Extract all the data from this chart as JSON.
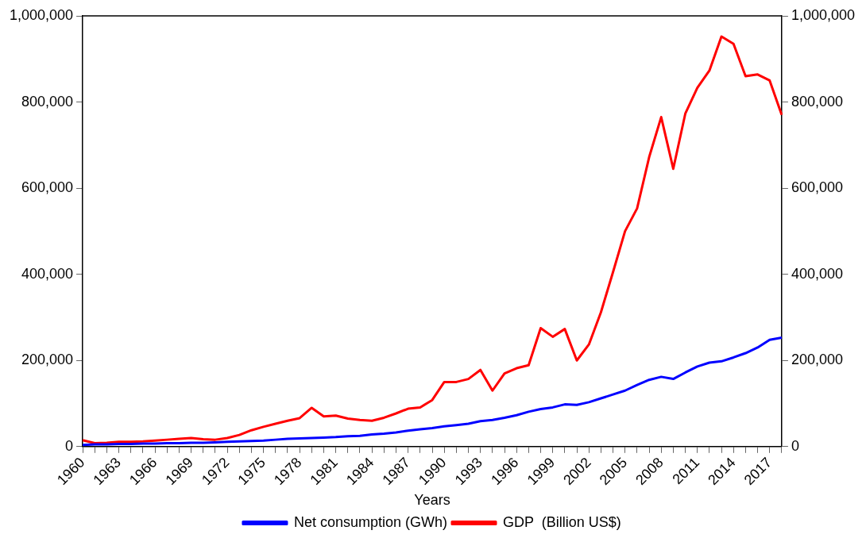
{
  "chart_data": {
    "type": "line",
    "xlabel": "Years",
    "categories": [
      "1960",
      null,
      null,
      "1963",
      null,
      null,
      "1966",
      null,
      null,
      "1969",
      null,
      null,
      "1972",
      null,
      null,
      "1975",
      null,
      null,
      "1978",
      null,
      null,
      "1981",
      null,
      null,
      "1984",
      null,
      null,
      "1987",
      null,
      null,
      "1990",
      null,
      null,
      "1993",
      null,
      null,
      "1996",
      null,
      null,
      "1999",
      null,
      null,
      "2002",
      null,
      null,
      "2005",
      null,
      null,
      "2008",
      null,
      null,
      "2011",
      null,
      null,
      "2014",
      null,
      null,
      "2017",
      null
    ],
    "series": [
      {
        "name": "Net consumption (GWh)",
        "color": "#0000ff",
        "values": [
          4000,
          5000,
          5000,
          6000,
          6000,
          7000,
          7000,
          8000,
          8000,
          9000,
          9000,
          10000,
          11000,
          12000,
          13000,
          14000,
          16000,
          18000,
          19000,
          20000,
          21000,
          22000,
          24000,
          25000,
          28000,
          30000,
          33000,
          37000,
          40000,
          43000,
          47000,
          50000,
          53000,
          59000,
          62000,
          67000,
          73000,
          81000,
          87000,
          91000,
          98000,
          97000,
          103000,
          112000,
          121000,
          130000,
          143000,
          155000,
          162000,
          157000,
          172000,
          186000,
          195000,
          198000,
          207000,
          217000,
          230000,
          248000,
          253000
        ]
      },
      {
        "name": "GDP  (Billion US$)",
        "color": "#ff0000",
        "values": [
          15000,
          8000,
          9000,
          11000,
          11000,
          12000,
          14000,
          16000,
          18000,
          20000,
          17000,
          16000,
          20000,
          27000,
          38000,
          46000,
          53000,
          60000,
          66000,
          90000,
          70000,
          72000,
          65000,
          62000,
          60000,
          67000,
          77000,
          88000,
          91000,
          108000,
          150000,
          150000,
          157000,
          178000,
          130000,
          170000,
          182000,
          189000,
          275000,
          255000,
          273000,
          200000,
          237000,
          312000,
          405000,
          500000,
          553000,
          672000,
          765000,
          645000,
          773000,
          833000,
          873000,
          952000,
          935000,
          860000,
          864000,
          850000,
          770000
        ]
      }
    ],
    "ylim": [
      0,
      1000000
    ],
    "yticks": [
      {
        "value": 0,
        "label": "0"
      },
      {
        "value": 200000,
        "label": "200,000"
      },
      {
        "value": 400000,
        "label": "400,000"
      },
      {
        "value": 600000,
        "label": "600,000"
      },
      {
        "value": 800000,
        "label": "800,000"
      },
      {
        "value": 1000000,
        "label": "1,000,000"
      }
    ],
    "y2lim": [
      0,
      1000000
    ],
    "y2ticks": [
      {
        "value": 0,
        "label": "0"
      },
      {
        "value": 200000,
        "label": "200,000"
      },
      {
        "value": 400000,
        "label": "400,000"
      },
      {
        "value": 600000,
        "label": "600,000"
      },
      {
        "value": 800000,
        "label": "800,000"
      },
      {
        "value": 1000000,
        "label": "1,000,000"
      }
    ],
    "grid": false,
    "legend": "bottom",
    "marker": "none",
    "line_style": "solid"
  }
}
